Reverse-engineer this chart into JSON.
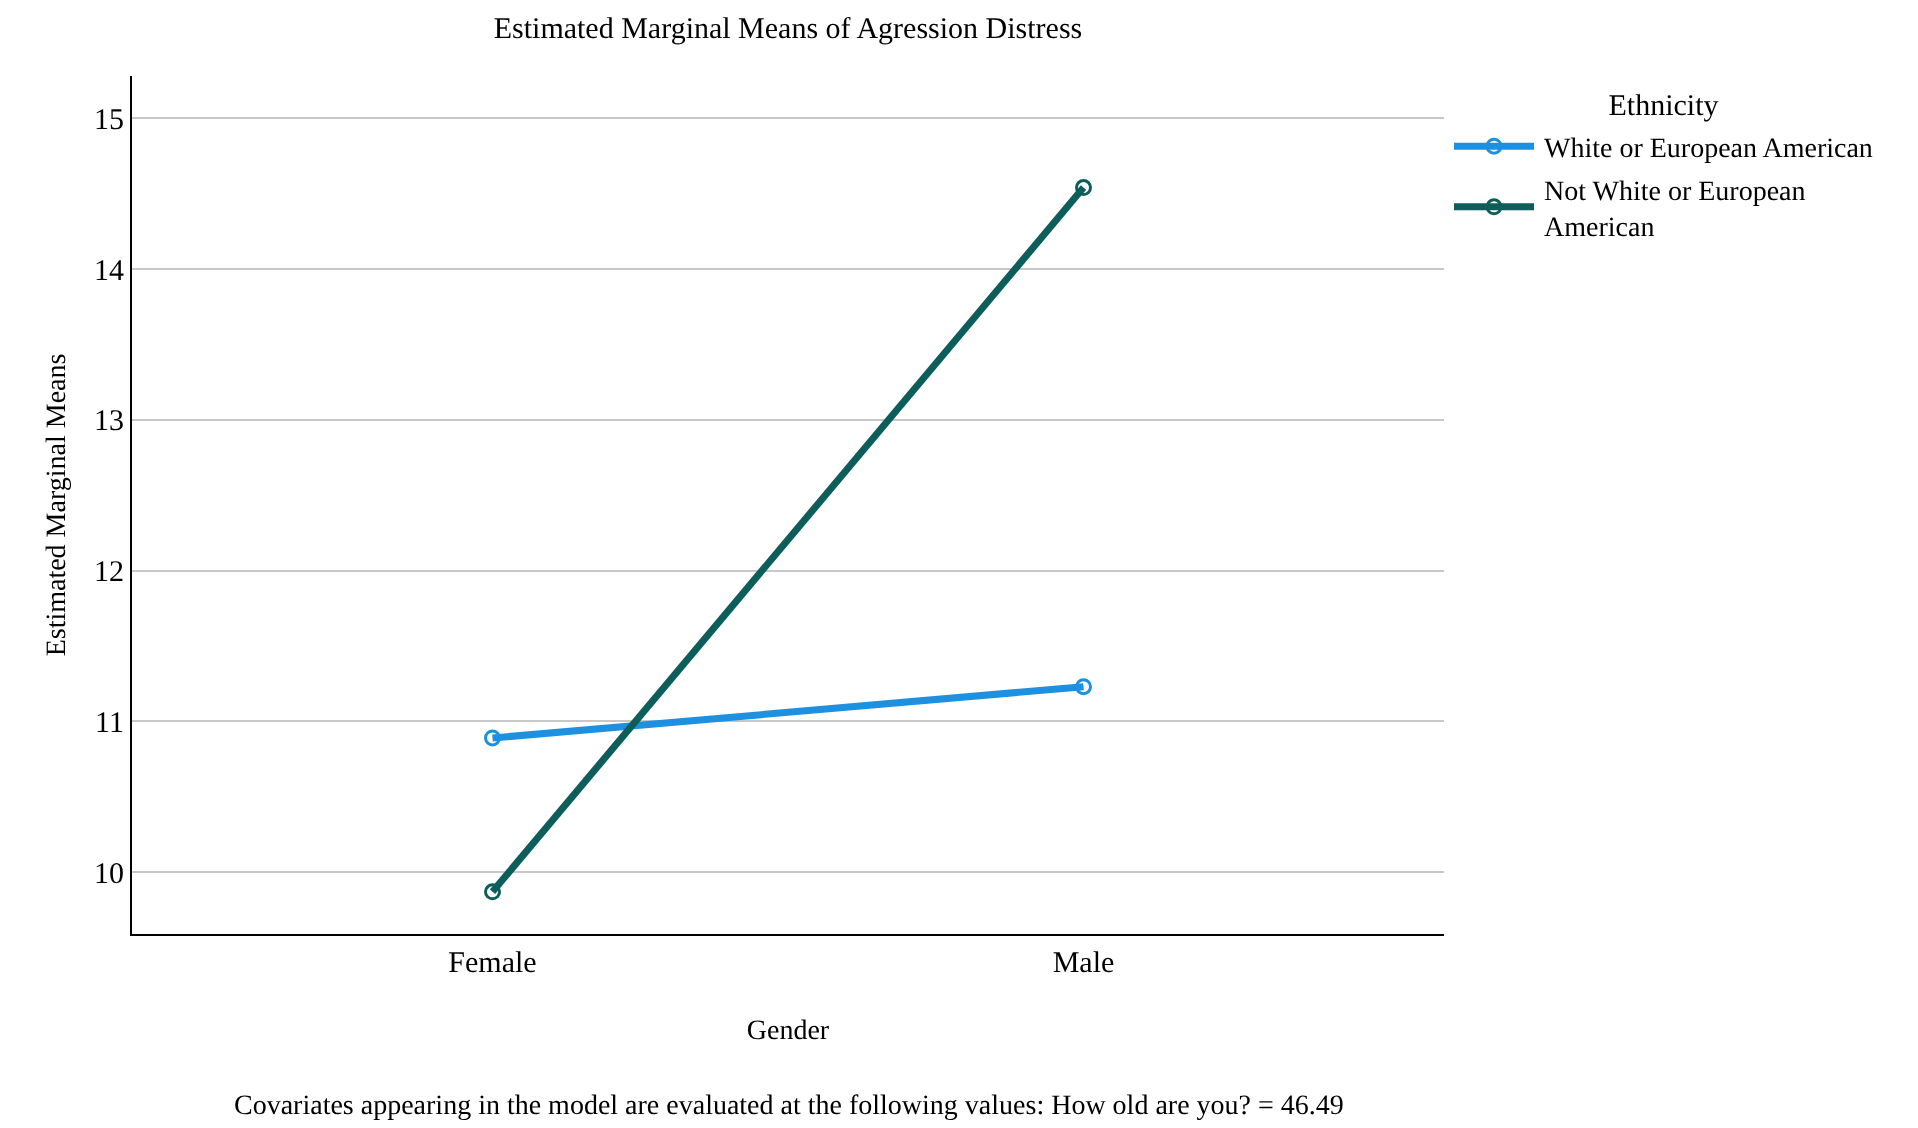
{
  "chart_data": {
    "type": "line",
    "title": "Estimated Marginal Means of Agression Distress",
    "xlabel": "Gender",
    "ylabel": "Estimated Marginal Means",
    "legend_title": "Ethnicity",
    "categories": [
      "Female",
      "Male"
    ],
    "series": [
      {
        "name": "White or European American",
        "color": "#1e90e0",
        "values": [
          10.89,
          11.23
        ]
      },
      {
        "name": "Not White or European American",
        "color": "#0d5e5a",
        "values": [
          9.87,
          14.54
        ]
      }
    ],
    "ylim": [
      9.59,
      15.28
    ],
    "yticks": [
      10,
      11,
      12,
      13,
      14,
      15
    ],
    "grid": "y",
    "legend": "top right",
    "marker": "circle",
    "line_style": "solid",
    "annotations": [
      "Covariates appearing in the model are evaluated at the following values: How old are you? = 46.49"
    ]
  }
}
